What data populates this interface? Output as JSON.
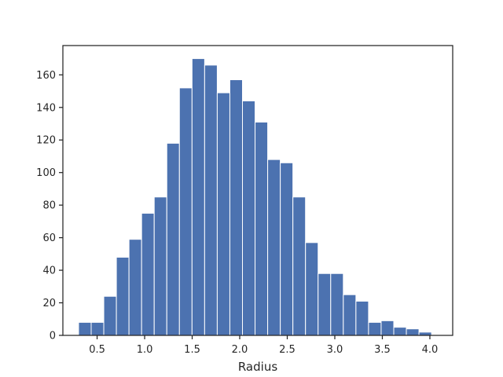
{
  "chart_data": {
    "type": "bar",
    "subtype": "histogram",
    "title": "",
    "xlabel": "Radius",
    "ylabel": "",
    "xlim": [
      0.14,
      4.24
    ],
    "ylim": [
      0,
      178
    ],
    "bin_start": 0.305,
    "bin_width": 0.1326,
    "counts": [
      8,
      8,
      24,
      48,
      59,
      75,
      85,
      118,
      152,
      170,
      166,
      149,
      157,
      144,
      131,
      108,
      106,
      85,
      57,
      38,
      38,
      25,
      21,
      8,
      9,
      5,
      4,
      2
    ],
    "xticks": [
      0.5,
      1.0,
      1.5,
      2.0,
      2.5,
      3.0,
      3.5,
      4.0
    ],
    "xtick_labels": [
      "0.5",
      "1.0",
      "1.5",
      "2.0",
      "2.5",
      "3.0",
      "3.5",
      "4.0"
    ],
    "yticks": [
      0,
      20,
      40,
      60,
      80,
      100,
      120,
      140,
      160
    ],
    "ytick_labels": [
      "0",
      "20",
      "40",
      "60",
      "80",
      "100",
      "120",
      "140",
      "160"
    ],
    "grid": false,
    "legend": "none",
    "bar_color": "#4c72b0",
    "bar_edge_color": "#ffffff"
  }
}
